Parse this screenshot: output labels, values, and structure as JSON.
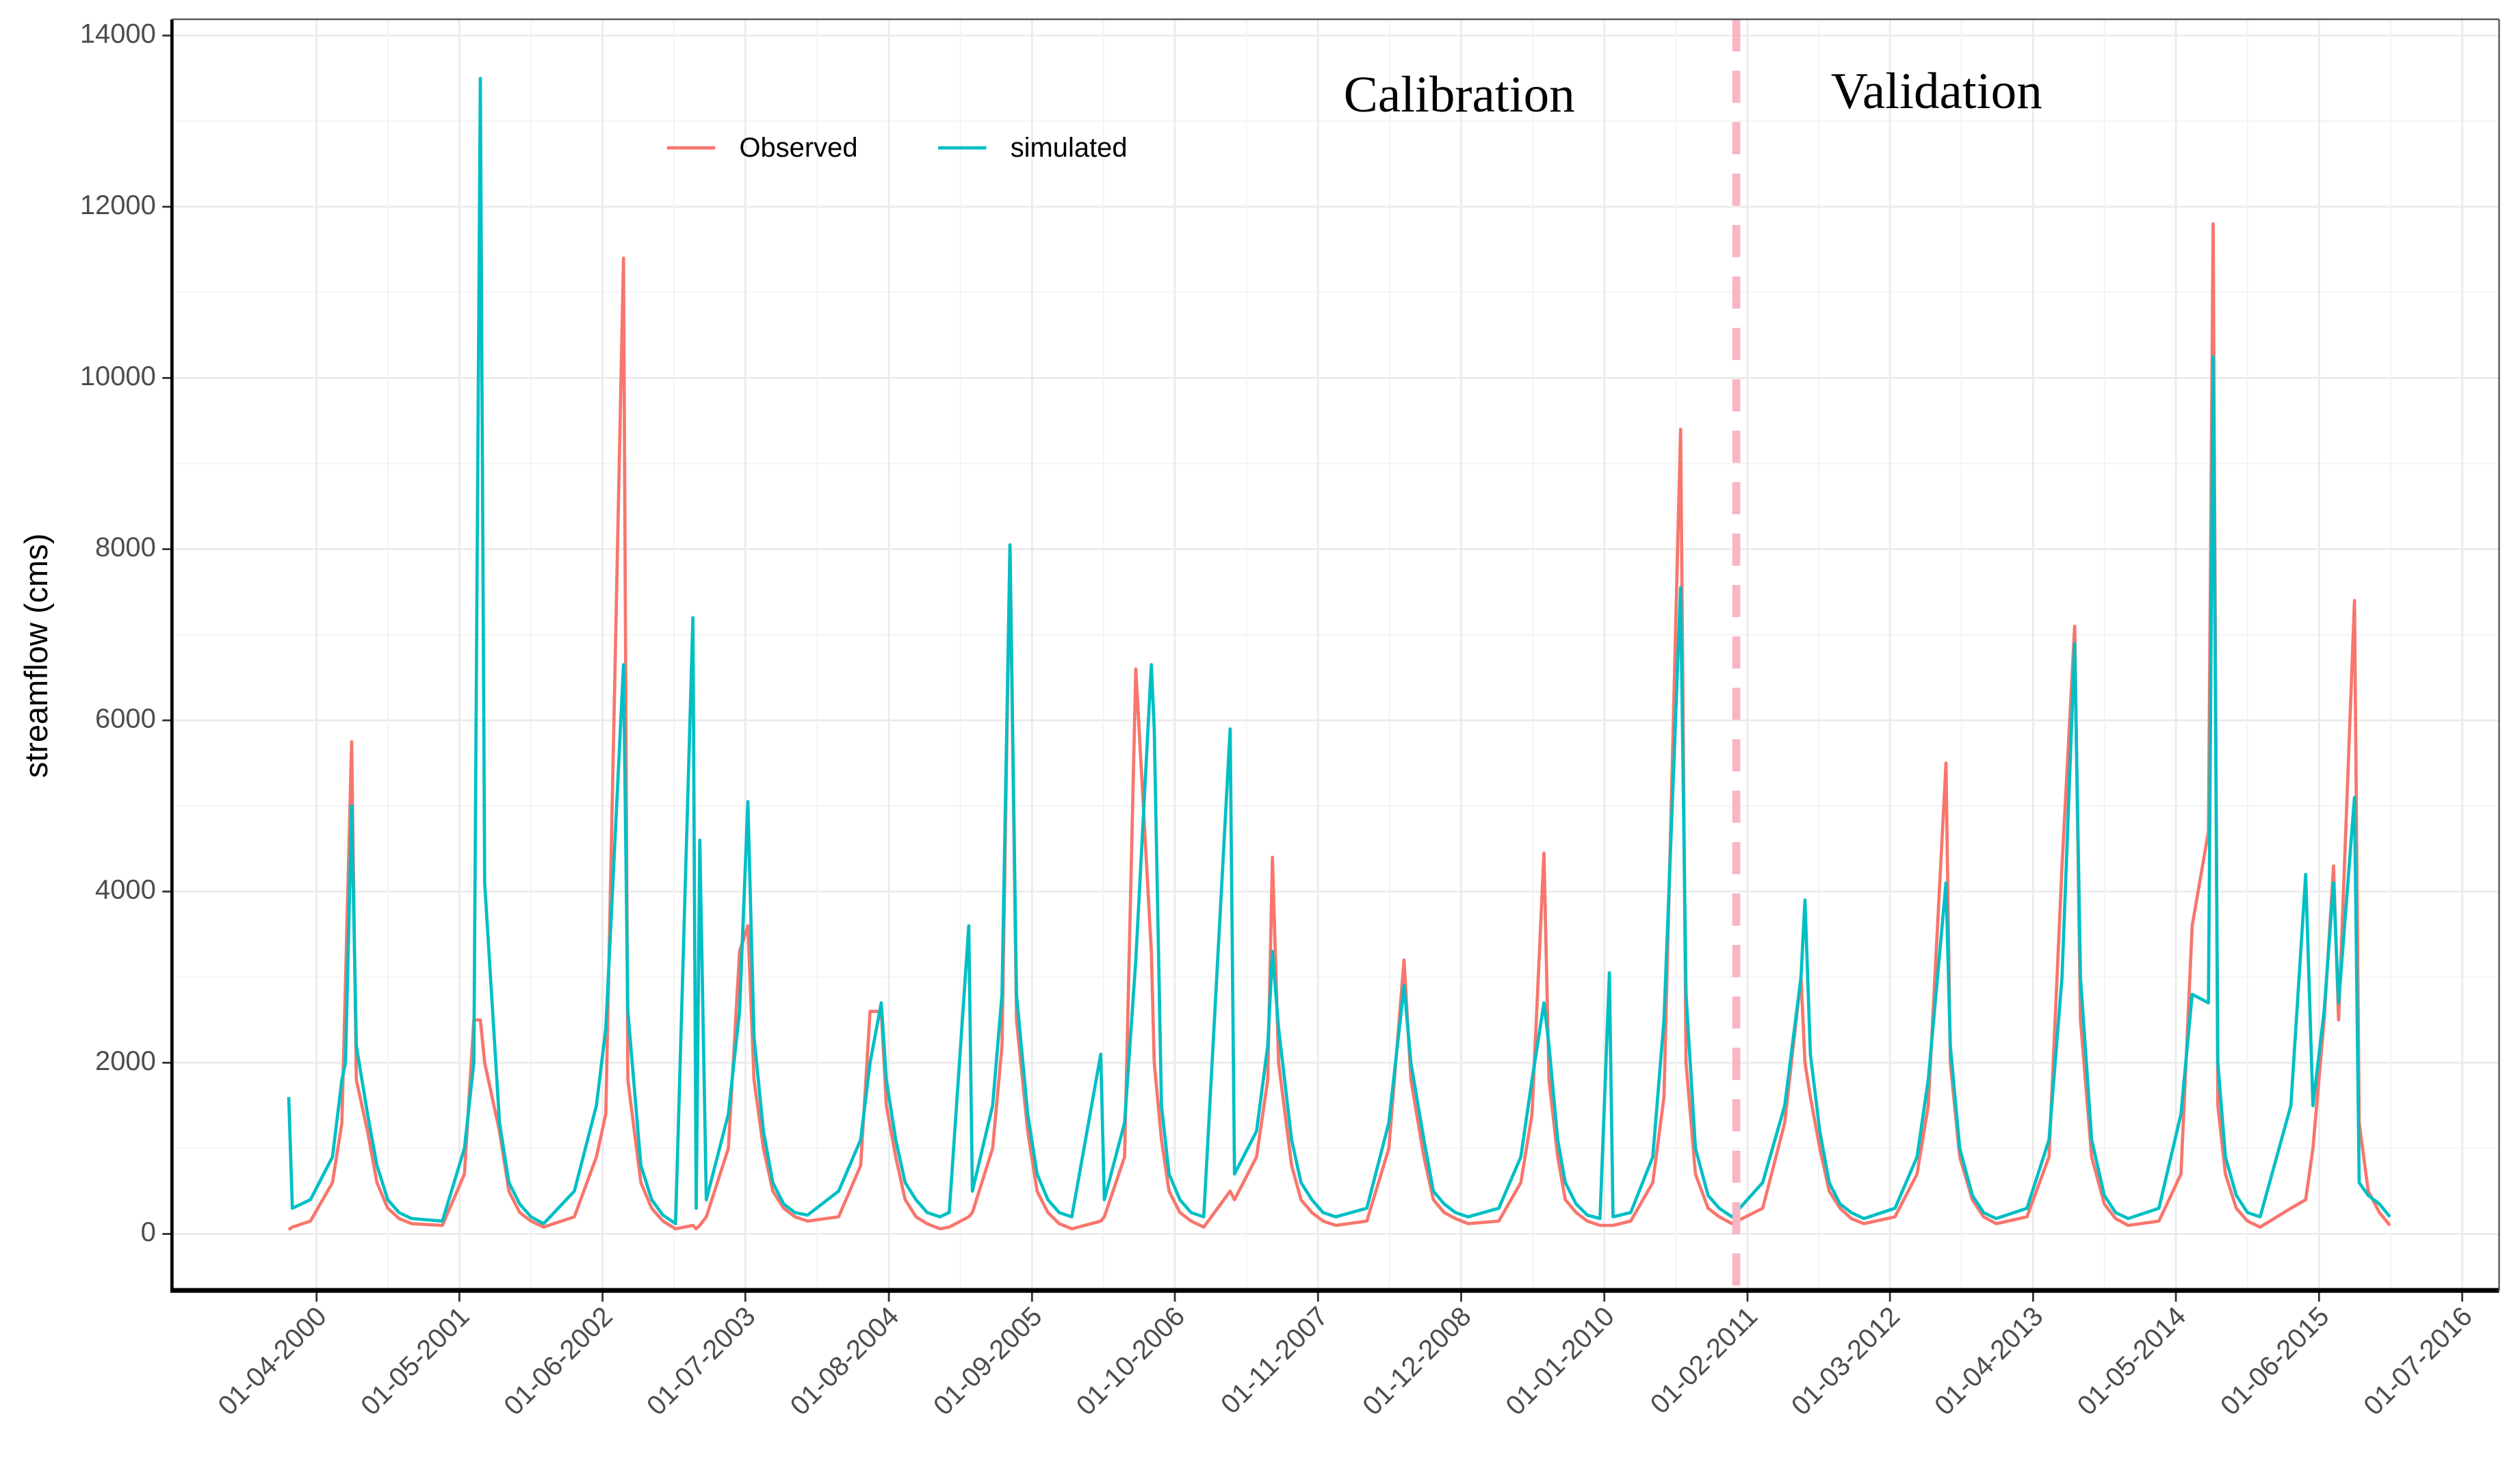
{
  "chart_data": {
    "type": "line",
    "ylabel": "streamflow (cms)",
    "annotations": [
      {
        "text": "Calibration"
      },
      {
        "text": "Validation"
      }
    ],
    "split_x": "01-01-2011",
    "legend": "top",
    "grid": true,
    "xlim": [
      "26-02-1999",
      "11-10-2016"
    ],
    "xticks": [
      "01-04-2000",
      "01-05-2001",
      "01-06-2002",
      "01-07-2003",
      "01-08-2004",
      "01-09-2005",
      "01-10-2006",
      "01-11-2007",
      "01-12-2008",
      "01-01-2010",
      "01-02-2011",
      "01-03-2012",
      "01-04-2013",
      "01-05-2014",
      "01-06-2015",
      "01-07-2016"
    ],
    "ylim": [
      -660,
      14190
    ],
    "yticks": [
      0,
      2000,
      4000,
      6000,
      8000,
      10000,
      12000,
      14000
    ],
    "x": [
      "15-01-2000",
      "25-01-2000",
      "15-03-2000",
      "15-05-2000",
      "10-06-2000",
      "20-06-2000",
      "07-07-2000",
      "20-07-2000",
      "20-08-2000",
      "15-09-2000",
      "15-10-2000",
      "15-11-2000",
      "20-12-2000",
      "15-03-2001",
      "15-05-2001",
      "10-06-2001",
      "28-06-2001",
      "10-07-2001",
      "20-08-2001",
      "15-09-2001",
      "15-10-2001",
      "15-11-2001",
      "20-12-2001",
      "15-03-2002",
      "15-05-2002",
      "10-06-2002",
      "29-07-2002",
      "10-08-2002",
      "15-09-2002",
      "15-10-2002",
      "15-11-2002",
      "20-12-2002",
      "06-02-2003",
      "15-02-2003",
      "25-02-2003",
      "15-03-2003",
      "15-05-2003",
      "15-06-2003",
      "08-07-2003",
      "25-07-2003",
      "20-08-2003",
      "15-09-2003",
      "15-10-2003",
      "15-11-2003",
      "20-12-2003",
      "15-03-2004",
      "15-05-2004",
      "10-06-2004",
      "11-07-2004",
      "25-07-2004",
      "20-08-2004",
      "15-09-2004",
      "15-10-2004",
      "15-11-2004",
      "20-12-2004",
      "15-01-2005",
      "10-03-2005",
      "20-03-2005",
      "15-05-2005",
      "10-06-2005",
      "02-07-2005",
      "20-07-2005",
      "20-08-2005",
      "15-09-2005",
      "15-10-2005",
      "15-11-2005",
      "20-12-2005",
      "10-03-2006",
      "20-03-2006",
      "15-05-2006",
      "15-06-2006",
      "28-07-2006",
      "05-08-2006",
      "25-08-2006",
      "15-09-2006",
      "15-10-2006",
      "15-11-2006",
      "20-12-2006",
      "03-03-2007",
      "15-03-2007",
      "15-05-2007",
      "15-06-2007",
      "28-06-2007",
      "15-07-2007",
      "20-08-2007",
      "15-09-2007",
      "15-10-2007",
      "15-11-2007",
      "20-12-2007",
      "15-03-2008",
      "15-05-2008",
      "26-06-2008",
      "15-07-2008",
      "20-08-2008",
      "15-09-2008",
      "15-10-2008",
      "15-11-2008",
      "20-12-2008",
      "15-03-2009",
      "15-05-2009",
      "15-06-2009",
      "18-07-2009",
      "01-08-2009",
      "25-08-2009",
      "15-09-2009",
      "15-10-2009",
      "15-11-2009",
      "20-12-2009",
      "15-01-2010",
      "25-01-2010",
      "15-03-2010",
      "15-05-2010",
      "15-06-2010",
      "31-07-2010",
      "15-08-2010",
      "10-09-2010",
      "15-10-2010",
      "15-11-2010",
      "20-12-2010",
      "15-03-2011",
      "15-05-2011",
      "29-06-2011",
      "10-07-2011",
      "25-07-2011",
      "20-08-2011",
      "15-09-2011",
      "15-10-2011",
      "15-11-2011",
      "20-12-2011",
      "15-03-2012",
      "15-05-2012",
      "15-06-2012",
      "03-08-2012",
      "15-08-2012",
      "10-09-2012",
      "15-10-2012",
      "15-11-2012",
      "20-12-2012",
      "15-03-2013",
      "15-05-2013",
      "20-06-2013",
      "25-07-2013",
      "10-08-2013",
      "10-09-2013",
      "15-10-2013",
      "15-11-2013",
      "20-12-2013",
      "15-03-2014",
      "15-05-2014",
      "15-06-2014",
      "30-07-2014",
      "12-08-2014",
      "25-08-2014",
      "15-09-2014",
      "15-10-2014",
      "15-11-2014",
      "20-12-2014",
      "15-03-2015",
      "25-04-2015",
      "15-05-2015",
      "15-06-2015",
      "11-07-2015",
      "25-07-2015",
      "07-09-2015",
      "20-09-2015",
      "15-10-2015",
      "15-11-2015",
      "14-12-2015"
    ],
    "series": [
      {
        "name": "Observed",
        "color": "#F8766D",
        "values": [
          50,
          80,
          150,
          600,
          1300,
          2950,
          5750,
          1800,
          1200,
          600,
          300,
          180,
          120,
          100,
          700,
          2500,
          2500,
          2000,
          1200,
          500,
          250,
          150,
          80,
          200,
          900,
          1400,
          11400,
          1800,
          600,
          300,
          150,
          60,
          100,
          60,
          100,
          200,
          1000,
          3300,
          3600,
          1800,
          1000,
          500,
          300,
          200,
          150,
          200,
          800,
          2600,
          2600,
          1500,
          900,
          400,
          200,
          120,
          60,
          80,
          200,
          250,
          1000,
          2200,
          8050,
          2500,
          1200,
          500,
          250,
          120,
          60,
          150,
          200,
          900,
          6600,
          3300,
          2000,
          1100,
          500,
          250,
          150,
          80,
          500,
          400,
          900,
          1800,
          4400,
          2000,
          800,
          400,
          250,
          150,
          100,
          150,
          1000,
          3200,
          1800,
          900,
          400,
          250,
          180,
          120,
          150,
          600,
          1400,
          4450,
          1800,
          900,
          400,
          250,
          150,
          100,
          100,
          100,
          150,
          600,
          1600,
          9400,
          2000,
          700,
          300,
          200,
          120,
          300,
          1300,
          3000,
          2000,
          1600,
          1000,
          500,
          300,
          180,
          120,
          200,
          700,
          1500,
          5500,
          2000,
          900,
          400,
          200,
          120,
          200,
          900,
          4300,
          7100,
          2500,
          900,
          350,
          180,
          100,
          150,
          700,
          3600,
          4700,
          11800,
          1500,
          700,
          300,
          150,
          80,
          300,
          400,
          1000,
          2500,
          4300,
          2500,
          7400,
          1300,
          500,
          250,
          100
        ]
      },
      {
        "name": "simulated",
        "color": "#00BFC4",
        "values": [
          1600,
          300,
          400,
          900,
          1800,
          2000,
          5000,
          2200,
          1400,
          800,
          400,
          250,
          180,
          150,
          1000,
          2000,
          13500,
          4100,
          1300,
          600,
          350,
          200,
          120,
          500,
          1500,
          2400,
          6650,
          2600,
          800,
          400,
          220,
          120,
          7200,
          300,
          4600,
          400,
          1400,
          2600,
          5050,
          2300,
          1200,
          600,
          350,
          250,
          220,
          500,
          1100,
          2000,
          2700,
          1800,
          1100,
          600,
          400,
          250,
          200,
          250,
          3600,
          500,
          1500,
          2800,
          8050,
          2800,
          1400,
          700,
          400,
          250,
          200,
          2100,
          400,
          1300,
          3200,
          6650,
          5900,
          1500,
          700,
          400,
          250,
          200,
          5900,
          700,
          1200,
          2200,
          3300,
          2400,
          1100,
          600,
          400,
          250,
          200,
          300,
          1300,
          2900,
          2000,
          1100,
          500,
          350,
          250,
          200,
          300,
          900,
          1800,
          2700,
          2200,
          1100,
          600,
          350,
          220,
          180,
          3050,
          200,
          250,
          900,
          2500,
          7550,
          2800,
          1000,
          450,
          300,
          200,
          600,
          1500,
          3000,
          3900,
          2100,
          1200,
          600,
          350,
          250,
          180,
          300,
          900,
          1800,
          4100,
          2200,
          1000,
          450,
          250,
          180,
          300,
          1100,
          3000,
          6900,
          3000,
          1100,
          450,
          250,
          180,
          300,
          1400,
          2800,
          2700,
          10250,
          2000,
          900,
          450,
          250,
          200,
          1500,
          4200,
          1500,
          2600,
          4100,
          2700,
          5100,
          600,
          450,
          350,
          200
        ]
      }
    ]
  }
}
